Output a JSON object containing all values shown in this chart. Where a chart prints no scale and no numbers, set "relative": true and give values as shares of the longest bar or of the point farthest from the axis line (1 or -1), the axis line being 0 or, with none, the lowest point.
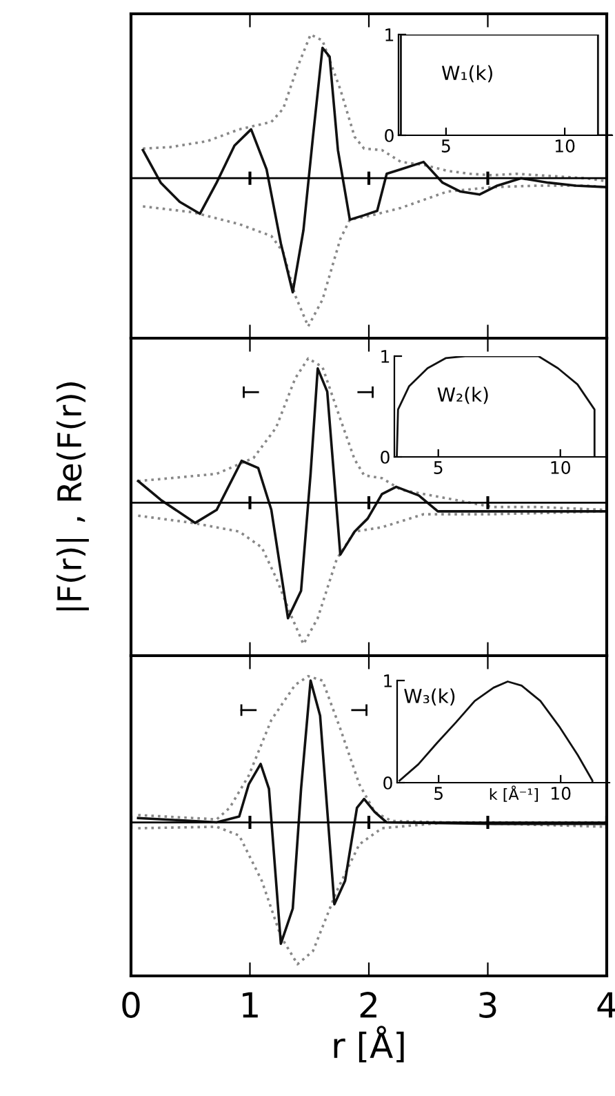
{
  "chart_data": [
    {
      "type": "line",
      "relative": true,
      "xlim": [
        0,
        4
      ],
      "xticks": [
        1,
        2,
        3
      ],
      "tick_labels": false,
      "series": [
        {
          "color": "#888888",
          "line_style": "dotted",
          "x": [
            0.1,
            0.33,
            0.64,
            0.91,
            1.18,
            1.28,
            1.4,
            1.51,
            1.61,
            1.76,
            1.88,
            1.96,
            2.11,
            2.27,
            2.46,
            2.66,
            2.85,
            3.04,
            3.24,
            3.43,
            3.82,
            4.0
          ],
          "values": [
            0.2,
            0.21,
            0.25,
            0.33,
            0.38,
            0.47,
            0.75,
            0.97,
            0.93,
            0.6,
            0.28,
            0.2,
            0.19,
            0.11,
            0.09,
            0.05,
            0.03,
            0.02,
            0.03,
            0.02,
            0,
            -0.02
          ]
        },
        {
          "color": "#888888",
          "line_style": "dotted",
          "x": [
            0.1,
            0.52,
            0.91,
            1.18,
            1.28,
            1.38,
            1.49,
            1.61,
            1.76,
            1.84,
            2.03,
            2.27,
            2.66,
            3.04,
            3.43,
            3.82,
            4.0
          ],
          "values": [
            -0.19,
            -0.23,
            -0.31,
            -0.39,
            -0.5,
            -0.79,
            -1.0,
            -0.82,
            -0.41,
            -0.28,
            -0.25,
            -0.2,
            -0.09,
            -0.06,
            -0.05,
            -0.05,
            -0.06
          ]
        },
        {
          "color": "#111111",
          "line_style": "solid",
          "x": [
            0.1,
            0.25,
            0.41,
            0.58,
            0.72,
            0.87,
            1.01,
            1.14,
            1.26,
            1.36,
            1.45,
            1.53,
            1.61,
            1.67,
            1.74,
            1.84,
            1.96,
            2.07,
            2.15,
            2.27,
            2.46,
            2.62,
            2.77,
            2.93,
            3.08,
            3.28,
            3.51,
            3.74,
            4.0
          ],
          "values": [
            0.19,
            -0.03,
            -0.16,
            -0.24,
            -0.03,
            0.22,
            0.33,
            0.06,
            -0.44,
            -0.77,
            -0.35,
            0.28,
            0.88,
            0.82,
            0.19,
            -0.28,
            -0.25,
            -0.22,
            0.03,
            0.06,
            0.11,
            -0.03,
            -0.09,
            -0.11,
            -0.05,
            0,
            -0.03,
            -0.05,
            -0.06
          ]
        }
      ]
    },
    {
      "type": "line",
      "xlim": [
        3.0,
        12.0
      ],
      "ylim": [
        0,
        1
      ],
      "xticks": [
        5,
        10
      ],
      "yticks": [
        0,
        1
      ],
      "annotations": [
        "W₁(k)"
      ],
      "series": [
        {
          "color": "#111111",
          "x": [
            3.0,
            3.1,
            3.1,
            11.4,
            11.4,
            12.0
          ],
          "values": [
            0,
            0,
            1,
            1,
            0,
            0
          ]
        }
      ]
    },
    {
      "type": "line",
      "relative": true,
      "xlim": [
        0,
        4
      ],
      "xticks": [
        1,
        2,
        3
      ],
      "tick_labels": false,
      "ylabel": "|F(r)| , Re(F(r))",
      "series": [
        {
          "color": "#888888",
          "line_style": "dotted",
          "x": [
            0.06,
            0.33,
            0.72,
            1.03,
            1.22,
            1.38,
            1.49,
            1.61,
            1.76,
            1.88,
            1.96,
            2.11,
            2.27,
            2.46,
            2.66,
            3.04,
            3.43,
            4.0
          ],
          "values": [
            0.15,
            0.17,
            0.2,
            0.31,
            0.52,
            0.86,
            1.0,
            0.94,
            0.58,
            0.3,
            0.19,
            0.17,
            0.09,
            0.06,
            0.03,
            -0.03,
            -0.03,
            -0.05
          ]
        },
        {
          "color": "#888888",
          "line_style": "dotted",
          "x": [
            0.06,
            0.52,
            0.91,
            1.1,
            1.22,
            1.34,
            1.45,
            1.57,
            1.73,
            1.88,
            2.11,
            2.46,
            2.66,
            3.04,
            4.0
          ],
          "values": [
            -0.09,
            -0.14,
            -0.2,
            -0.31,
            -0.52,
            -0.77,
            -0.98,
            -0.8,
            -0.39,
            -0.2,
            -0.17,
            -0.08,
            -0.08,
            -0.08,
            -0.06
          ]
        },
        {
          "color": "#111111",
          "line_style": "solid",
          "x": [
            0.06,
            0.25,
            0.54,
            0.72,
            0.93,
            1.07,
            1.18,
            1.32,
            1.43,
            1.51,
            1.57,
            1.65,
            1.76,
            1.88,
            1.99,
            2.11,
            2.23,
            2.42,
            2.58,
            2.77,
            3.04,
            4.0
          ],
          "values": [
            0.15,
            0.02,
            -0.14,
            -0.05,
            0.29,
            0.24,
            -0.05,
            -0.8,
            -0.61,
            0.2,
            0.93,
            0.77,
            -0.36,
            -0.2,
            -0.11,
            0.06,
            0.11,
            0.05,
            -0.06,
            -0.06,
            -0.06,
            -0.06
          ]
        }
      ]
    },
    {
      "type": "line",
      "xlim": [
        3.2,
        11.9
      ],
      "ylim": [
        0,
        1
      ],
      "xticks": [
        5,
        10
      ],
      "yticks": [
        0,
        1
      ],
      "annotations": [
        "W₂(k)"
      ],
      "series": [
        {
          "color": "#111111",
          "x": [
            3.3,
            3.35,
            3.8,
            4.56,
            5.3,
            6.1,
            9.1,
            9.9,
            10.7,
            11.4,
            11.4
          ],
          "values": [
            0,
            0.47,
            0.7,
            0.88,
            0.98,
            1.0,
            1.0,
            0.88,
            0.72,
            0.47,
            0
          ]
        }
      ]
    },
    {
      "type": "line",
      "relative": true,
      "xlim": [
        0,
        4
      ],
      "xticks": [
        0,
        1,
        2,
        3,
        4
      ],
      "tick_labels": "x",
      "xlabel": "r [Å]",
      "series": [
        {
          "color": "#888888",
          "line_style": "dotted",
          "x": [
            0.06,
            0.52,
            0.72,
            0.83,
            0.99,
            1.18,
            1.38,
            1.49,
            1.61,
            1.76,
            1.92,
            2.05,
            2.19,
            2.66,
            4.0
          ],
          "values": [
            0.05,
            0.03,
            0.02,
            0.1,
            0.32,
            0.7,
            0.94,
            1.0,
            0.97,
            0.64,
            0.26,
            0.07,
            0.01,
            0,
            0
          ]
        },
        {
          "color": "#888888",
          "line_style": "dotted",
          "x": [
            0.06,
            0.72,
            0.91,
            1.1,
            1.26,
            1.4,
            1.53,
            1.73,
            1.92,
            2.11,
            2.66,
            4.0
          ],
          "values": [
            -0.04,
            -0.03,
            -0.09,
            -0.4,
            -0.78,
            -0.97,
            -0.88,
            -0.47,
            -0.15,
            -0.04,
            0,
            -0.03
          ]
        },
        {
          "color": "#111111",
          "line_style": "solid",
          "x": [
            0.06,
            0.72,
            0.91,
            0.99,
            1.09,
            1.16,
            1.26,
            1.36,
            1.43,
            1.51,
            1.59,
            1.71,
            1.8,
            1.9,
            1.96,
            2.05,
            2.15,
            3.04,
            4.0
          ],
          "values": [
            0.03,
            0,
            0.04,
            0.26,
            0.4,
            0.23,
            -0.83,
            -0.59,
            0.23,
            0.97,
            0.73,
            -0.56,
            -0.4,
            0.1,
            0.16,
            0.07,
            0,
            -0.01,
            -0.01
          ]
        }
      ]
    },
    {
      "type": "line",
      "xlim": [
        3.3,
        12.0
      ],
      "ylim": [
        0,
        1
      ],
      "xticks": [
        5,
        10
      ],
      "yticks": [
        0,
        1
      ],
      "xlabel": "k [Å⁻¹]",
      "annotations": [
        "W₃(k)"
      ],
      "series": [
        {
          "color": "#111111",
          "x": [
            3.4,
            4.17,
            4.94,
            5.71,
            6.48,
            7.25,
            7.83,
            8.4,
            9.17,
            9.94,
            10.7,
            11.3,
            11.3
          ],
          "values": [
            0.02,
            0.18,
            0.39,
            0.59,
            0.8,
            0.93,
            0.99,
            0.95,
            0.8,
            0.55,
            0.27,
            0.02,
            0
          ]
        }
      ]
    }
  ]
}
